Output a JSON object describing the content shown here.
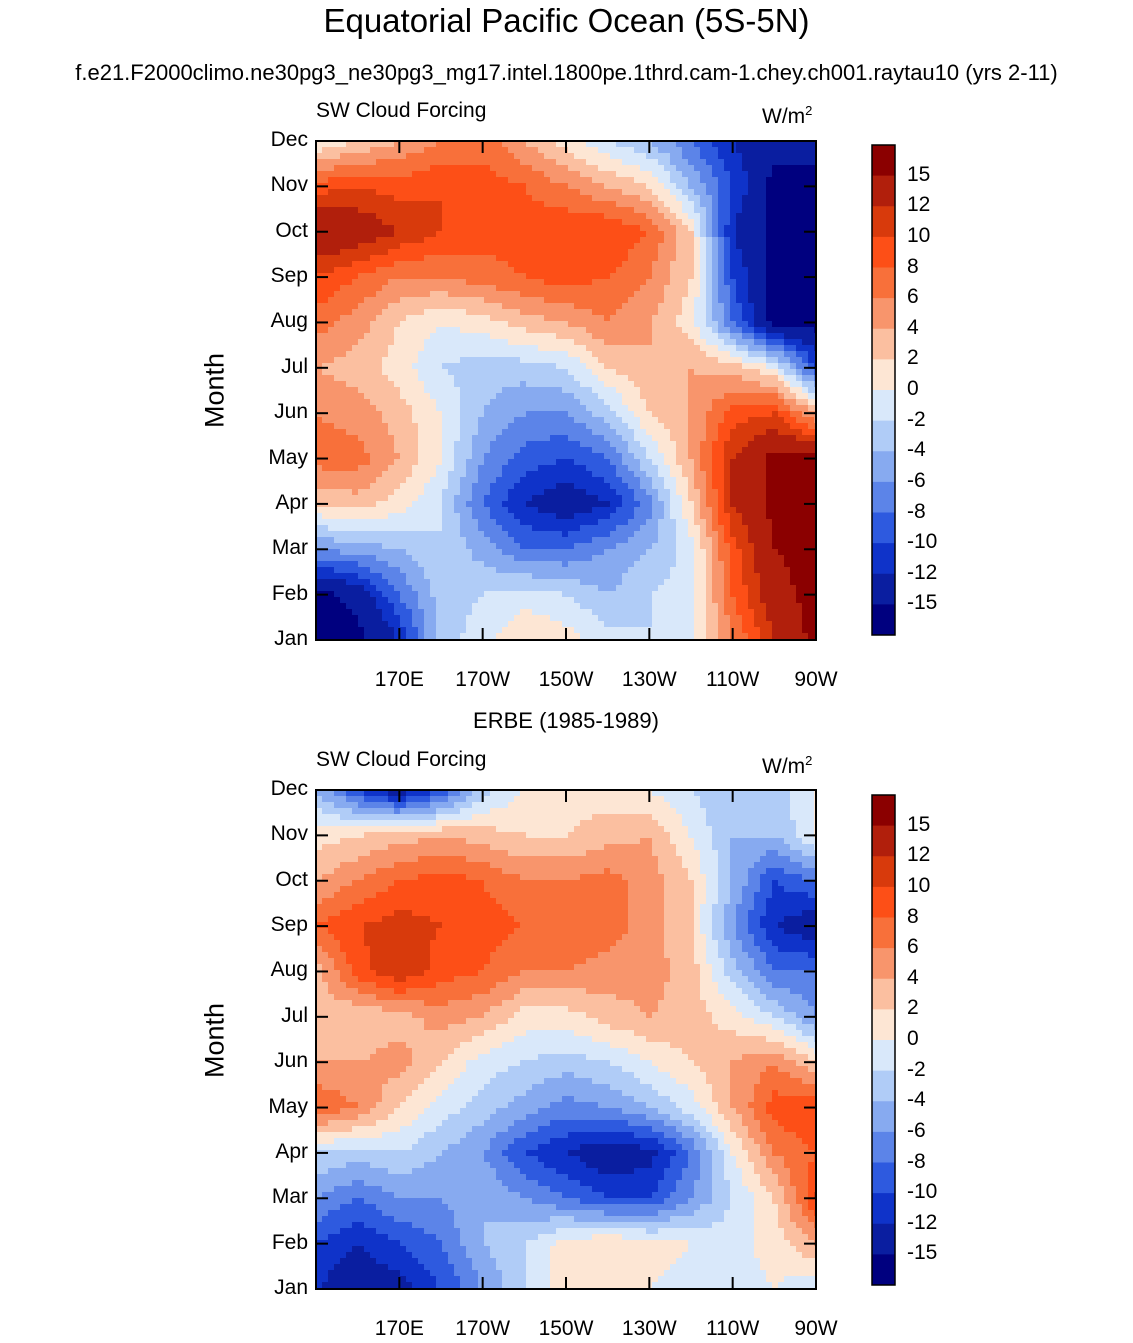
{
  "figure": {
    "title": "Equatorial Pacific Ocean (5S-5N)",
    "subtitle": "f.e21.F2000climo.ne30pg3_ne30pg3_mg17.intel.1800pe.1thrd.cam-1.chey.ch001.raytau10 (yrs 2-11)",
    "panel2_title": "ERBE (1985-1989)"
  },
  "colorbar": {
    "labels": [
      "15",
      "12",
      "10",
      "8",
      "6",
      "4",
      "2",
      "0",
      "-2",
      "-4",
      "-6",
      "-8",
      "-10",
      "-12",
      "-15"
    ],
    "colors_top_to_bottom": [
      "#8b0000",
      "#b11f0c",
      "#d83a0c",
      "#fd4f17",
      "#f8703a",
      "#f8956c",
      "#fbbfa0",
      "#fde6d4",
      "#d9e8fa",
      "#b0ccf7",
      "#87aaf0",
      "#5c84e8",
      "#2e5adf",
      "#0f33c9",
      "#0a1ea0",
      "#00007f"
    ]
  },
  "chart_data": [
    {
      "type": "heatmap",
      "panel_label": "SW Cloud Forcing",
      "units": "W/m",
      "units_sup": "2",
      "ylabel": "Month",
      "yticks": [
        "Dec",
        "Nov",
        "Oct",
        "Sep",
        "Aug",
        "Jul",
        "Jun",
        "May",
        "Apr",
        "Mar",
        "Feb",
        "Jan"
      ],
      "xticks": [
        "170E",
        "170W",
        "150W",
        "130W",
        "110W",
        "90W"
      ],
      "x_lon": [
        150,
        160,
        170,
        180,
        190,
        200,
        210,
        220,
        230,
        240,
        250,
        260,
        270
      ],
      "months": [
        "Jan",
        "Feb",
        "Mar",
        "Apr",
        "May",
        "Jun",
        "Jul",
        "Aug",
        "Sep",
        "Oct",
        "Nov",
        "Dec"
      ],
      "z": [
        [
          -16,
          -16,
          -12,
          -3,
          -1,
          2,
          1,
          -1,
          -2,
          -1,
          6,
          12,
          16
        ],
        [
          -16,
          -14,
          -8,
          -3,
          -2,
          -1,
          -2,
          -4,
          -2,
          -1,
          8,
          14,
          16
        ],
        [
          -6,
          -5,
          -4,
          -2,
          -5,
          -8,
          -8,
          -6,
          -4,
          -1,
          9,
          15,
          16
        ],
        [
          2,
          3,
          1,
          -2,
          -8,
          -12,
          -14,
          -12,
          -7,
          2,
          12,
          16,
          16
        ],
        [
          7,
          7,
          4,
          0,
          -6,
          -9,
          -10,
          -8,
          -2,
          4,
          12,
          16,
          16
        ],
        [
          6,
          5,
          3,
          0,
          -4,
          -6,
          -6,
          -3,
          2,
          4,
          9,
          10,
          4
        ],
        [
          4,
          3,
          1,
          -2,
          -3,
          -3,
          -2,
          2,
          4,
          4,
          3,
          0,
          -10
        ],
        [
          7,
          5,
          2,
          0,
          1,
          3,
          4,
          6,
          4,
          1,
          -8,
          -16,
          -16
        ],
        [
          10,
          8,
          6,
          6,
          7,
          8,
          9,
          8,
          6,
          2,
          -10,
          -16,
          -16
        ],
        [
          15,
          14,
          12,
          10,
          9,
          9,
          10,
          10,
          8,
          2,
          -12,
          -16,
          -16
        ],
        [
          9,
          10,
          9,
          10,
          9,
          8,
          6,
          4,
          2,
          -4,
          -10,
          -16,
          -16
        ],
        [
          0,
          2,
          4,
          6,
          7,
          4,
          1,
          -2,
          -4,
          -8,
          -12,
          -14,
          -14
        ]
      ]
    },
    {
      "type": "heatmap",
      "panel_label": "SW Cloud Forcing",
      "units": "W/m",
      "units_sup": "2",
      "ylabel": "Month",
      "yticks": [
        "Dec",
        "Nov",
        "Oct",
        "Sep",
        "Aug",
        "Jul",
        "Jun",
        "May",
        "Apr",
        "Mar",
        "Feb",
        "Jan"
      ],
      "xticks": [
        "170E",
        "170W",
        "150W",
        "130W",
        "110W",
        "90W"
      ],
      "x_lon": [
        150,
        160,
        170,
        180,
        190,
        200,
        210,
        220,
        230,
        240,
        250,
        260,
        270
      ],
      "months": [
        "Jan",
        "Feb",
        "Mar",
        "Apr",
        "May",
        "Jun",
        "Jul",
        "Aug",
        "Sep",
        "Oct",
        "Nov",
        "Dec"
      ],
      "z": [
        [
          -12,
          -14,
          -13,
          -10,
          -6,
          -2,
          1,
          1,
          0,
          -1,
          -1,
          0,
          -2
        ],
        [
          -10,
          -12,
          -10,
          -8,
          -4,
          -2,
          1,
          2,
          1,
          0,
          -1,
          1,
          4
        ],
        [
          -6,
          -8,
          -6,
          -6,
          -4,
          -6,
          -8,
          -10,
          -10,
          -6,
          -2,
          2,
          10
        ],
        [
          -2,
          -3,
          -2,
          -4,
          -6,
          -10,
          -12,
          -14,
          -13,
          -8,
          0,
          6,
          8
        ],
        [
          8,
          6,
          2,
          -1,
          -3,
          -5,
          -7,
          -6,
          -4,
          -1,
          4,
          9,
          10
        ],
        [
          4,
          4,
          5,
          2,
          -1,
          -2,
          -3,
          -2,
          0,
          2,
          4,
          6,
          2
        ],
        [
          3,
          2,
          3,
          5,
          4,
          1,
          1,
          3,
          4,
          3,
          1,
          -2,
          -6
        ],
        [
          3,
          9,
          12,
          9,
          8,
          6,
          6,
          5,
          5,
          3,
          -3,
          -8,
          -8
        ],
        [
          8,
          10,
          11,
          10,
          9,
          8,
          8,
          7,
          5,
          2,
          -6,
          -12,
          -14
        ],
        [
          4,
          6,
          8,
          9,
          8,
          6,
          6,
          7,
          5,
          2,
          -4,
          -10,
          -8
        ],
        [
          1,
          2,
          3,
          4,
          3,
          2,
          2,
          3,
          4,
          0,
          -4,
          -4,
          0
        ],
        [
          -4,
          -10,
          -14,
          -10,
          -3,
          0,
          1,
          1,
          0,
          -2,
          -4,
          -3,
          0
        ]
      ]
    }
  ]
}
